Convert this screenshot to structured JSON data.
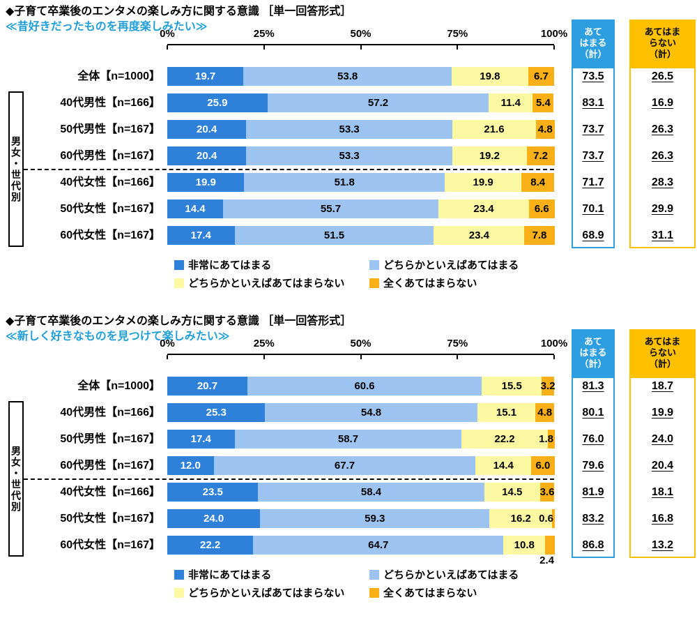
{
  "page": {
    "background": "#FFFFFF"
  },
  "group_label": "男女・世代別",
  "colors": {
    "series": [
      "#2E80D8",
      "#9DC3F0",
      "#FDF9A3",
      "#F8AF18"
    ],
    "subtitle": "#1F9ED9",
    "agree_header_bg": "#2D9FE0",
    "disagree_header_bg": "#FFC000",
    "axis": "#000000"
  },
  "columns": {
    "agree": {
      "header_lines": [
        "あて",
        "はまる",
        "（計）"
      ],
      "bg": "#2D9FE0",
      "text_color": "#FFFFFF",
      "border": "#2D9FE0"
    },
    "disagree": {
      "header_lines": [
        "あてはま",
        "らない",
        "（計）"
      ],
      "bg": "#FFC000",
      "text_color": "#000000",
      "border": "#FFC000"
    }
  },
  "legend": {
    "items": [
      {
        "label": "非常にあてはまる",
        "color": "#2E80D8"
      },
      {
        "label": "どちらかといえばあてはまる",
        "color": "#9DC3F0"
      },
      {
        "label": "どちらかといえばあてはまらない",
        "color": "#FDF9A3"
      },
      {
        "label": "全くあてはまらない",
        "color": "#F8AF18"
      }
    ]
  },
  "chart_data": [
    {
      "type": "bar",
      "stacked": true,
      "orientation": "horizontal",
      "title": "◆子育て卒業後のエンタメの楽しみ方に関する意識 ［単一回答形式］",
      "subtitle": "≪昔好きだったものを再度楽しみたい≫",
      "xlim": [
        0,
        100
      ],
      "ticks": [
        "0%",
        "25%",
        "50%",
        "75%",
        "100%"
      ],
      "categories": [
        "全体【n=1000】",
        "40代男性【n=166】",
        "50代男性【n=167】",
        "60代男性【n=167】",
        "40代女性【n=166】",
        "50代女性【n=167】",
        "60代女性【n=167】"
      ],
      "series": [
        {
          "name": "非常にあてはまる",
          "color": "#2E80D8",
          "values": [
            19.7,
            25.9,
            20.4,
            20.4,
            19.9,
            14.4,
            17.4
          ]
        },
        {
          "name": "どちらかといえばあてはまる",
          "color": "#9DC3F0",
          "values": [
            53.8,
            57.2,
            53.3,
            53.3,
            51.8,
            55.7,
            51.5
          ]
        },
        {
          "name": "どちらかといえばあてはまらない",
          "color": "#FDF9A3",
          "values": [
            19.8,
            11.4,
            21.6,
            19.2,
            19.9,
            23.4,
            23.4
          ]
        },
        {
          "name": "全くあてはまらない",
          "color": "#F8AF18",
          "values": [
            6.7,
            5.4,
            4.8,
            7.2,
            8.4,
            6.6,
            7.8
          ]
        }
      ],
      "totals_agree": [
        "73.5",
        "83.1",
        "73.7",
        "73.7",
        "71.7",
        "70.1",
        "68.9"
      ],
      "totals_disagree": [
        "26.5",
        "16.9",
        "26.3",
        "26.3",
        "28.3",
        "29.9",
        "31.1"
      ],
      "label_overrides": []
    },
    {
      "type": "bar",
      "stacked": true,
      "orientation": "horizontal",
      "title": "◆子育て卒業後のエンタメの楽しみ方に関する意識 ［単一回答形式］",
      "subtitle": "≪新しく好きなものを見つけて楽しみたい≫",
      "xlim": [
        0,
        100
      ],
      "ticks": [
        "0%",
        "25%",
        "50%",
        "75%",
        "100%"
      ],
      "categories": [
        "全体【n=1000】",
        "40代男性【n=166】",
        "50代男性【n=167】",
        "60代男性【n=167】",
        "40代女性【n=166】",
        "50代女性【n=167】",
        "60代女性【n=167】"
      ],
      "series": [
        {
          "name": "非常にあてはまる",
          "color": "#2E80D8",
          "values": [
            20.7,
            25.3,
            17.4,
            12.0,
            23.5,
            24.0,
            22.2
          ]
        },
        {
          "name": "どちらかといえばあてはまる",
          "color": "#9DC3F0",
          "values": [
            60.6,
            54.8,
            58.7,
            67.7,
            58.4,
            59.3,
            64.7
          ]
        },
        {
          "name": "どちらかといえばあてはまらない",
          "color": "#FDF9A3",
          "values": [
            15.5,
            15.1,
            22.2,
            14.4,
            14.5,
            16.2,
            10.8
          ]
        },
        {
          "name": "全くあてはまらない",
          "color": "#F8AF18",
          "values": [
            3.2,
            4.8,
            1.8,
            6.0,
            3.6,
            0.6,
            2.4
          ]
        }
      ],
      "totals_agree": [
        "81.3",
        "80.1",
        "76.0",
        "79.6",
        "81.9",
        "83.2",
        "86.8"
      ],
      "totals_disagree": [
        "18.7",
        "19.9",
        "24.0",
        "20.4",
        "18.1",
        "16.8",
        "13.2"
      ],
      "label_overrides": [
        {
          "row": 6,
          "seg": 3,
          "pos": "below"
        }
      ]
    }
  ]
}
